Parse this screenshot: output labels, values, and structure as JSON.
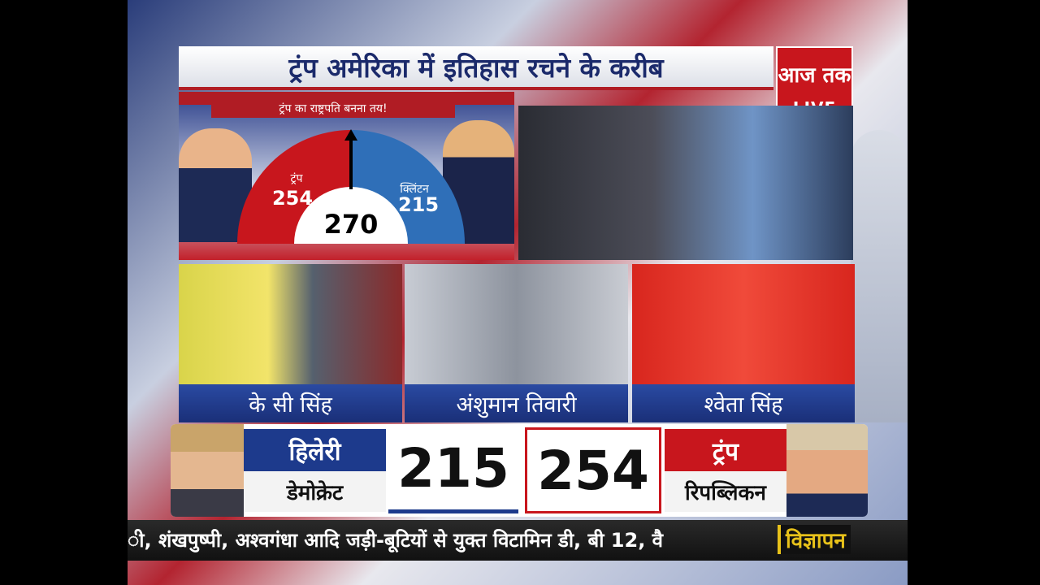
{
  "headline": "ट्रंप अमेरिका में इतिहास रचने के करीब",
  "logo": {
    "name": "आज तक",
    "live": "LIVE"
  },
  "graphic": {
    "ribbon": "ट्रंप का राष्ट्रपति बनना तय!",
    "left": {
      "name": "ट्रंप",
      "votes": "254"
    },
    "right": {
      "name": "क्लिंटन",
      "votes": "215"
    },
    "target": "270"
  },
  "panelists": [
    "के सी सिंह",
    "अंशुमान तिवारी",
    "श्वेता सिंह"
  ],
  "scoreboard": {
    "left": {
      "name": "हिलेरी",
      "party": "डेमोक्रेट",
      "votes": "215"
    },
    "right": {
      "name": "ट्रंप",
      "party": "रिपब्लिकन",
      "votes": "254"
    }
  },
  "ticker": {
    "text": "ी, शंखपुष्पी, अश्वगंधा आदि जड़ी-बूटियों से युक्त विटामिन डी, बी 12, वै",
    "tag": "विज्ञापन"
  }
}
